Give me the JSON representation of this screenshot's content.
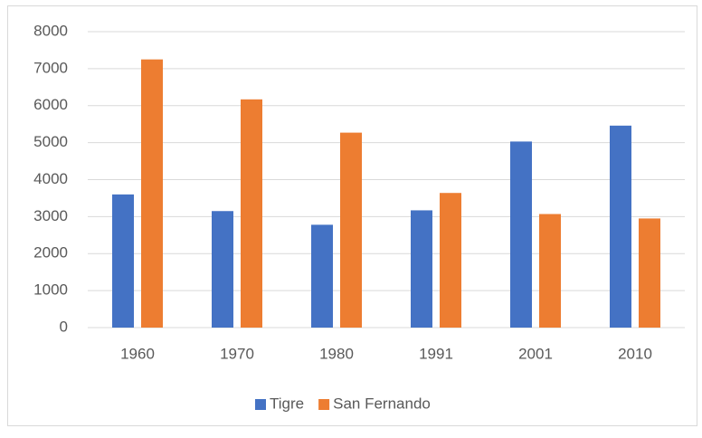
{
  "chart_data": {
    "type": "bar",
    "categories": [
      "1960",
      "1970",
      "1980",
      "1991",
      "2001",
      "2010"
    ],
    "series": [
      {
        "name": "Tigre",
        "color": "#4472c4",
        "values": [
          3600,
          3150,
          2780,
          3170,
          5030,
          5460
        ]
      },
      {
        "name": "San Fernando",
        "color": "#ed7d31",
        "values": [
          7250,
          6170,
          5270,
          3640,
          3070,
          2950
        ]
      }
    ],
    "ylim": [
      0,
      8000
    ],
    "yticks": [
      0,
      1000,
      2000,
      3000,
      4000,
      5000,
      6000,
      7000,
      8000
    ],
    "grid": true,
    "legend": "bottom"
  }
}
